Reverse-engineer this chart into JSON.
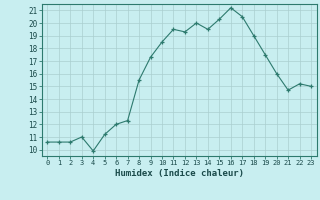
{
  "x": [
    0,
    1,
    2,
    3,
    4,
    5,
    6,
    7,
    8,
    9,
    10,
    11,
    12,
    13,
    14,
    15,
    16,
    17,
    18,
    19,
    20,
    21,
    22,
    23
  ],
  "y": [
    10.6,
    10.6,
    10.6,
    11.0,
    9.9,
    11.2,
    12.0,
    12.3,
    15.5,
    17.3,
    18.5,
    19.5,
    19.3,
    20.0,
    19.5,
    20.3,
    21.2,
    20.5,
    19.0,
    17.5,
    16.0,
    14.7,
    15.2,
    15.0
  ],
  "line_color": "#2d7a6e",
  "marker": "+",
  "marker_color": "#2d7a6e",
  "bg_color": "#c8eef0",
  "grid_color": "#aacfcf",
  "xlabel": "Humidex (Indice chaleur)",
  "ylim": [
    9.5,
    21.5
  ],
  "xlim": [
    -0.5,
    23.5
  ],
  "yticks": [
    10,
    11,
    12,
    13,
    14,
    15,
    16,
    17,
    18,
    19,
    20,
    21
  ],
  "xticks": [
    0,
    1,
    2,
    3,
    4,
    5,
    6,
    7,
    8,
    9,
    10,
    11,
    12,
    13,
    14,
    15,
    16,
    17,
    18,
    19,
    20,
    21,
    22,
    23
  ],
  "tick_color": "#2d7a6e",
  "label_color": "#1a4a4a"
}
